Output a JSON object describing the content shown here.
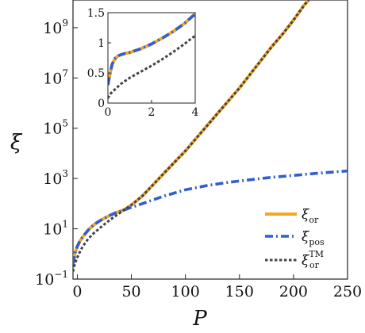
{
  "chart_data": {
    "type": "line",
    "xlabel": "P",
    "ylabel": "ξ",
    "xlim": [
      -4,
      250
    ],
    "y_log10_lim": [
      -1,
      10.1
    ],
    "y_scale": "log",
    "x_ticks": [
      {
        "value": 0,
        "label": "0"
      },
      {
        "value": 50,
        "label": "50"
      },
      {
        "value": 100,
        "label": "100"
      },
      {
        "value": 150,
        "label": "150"
      },
      {
        "value": 200,
        "label": "200"
      },
      {
        "value": 250,
        "label": "250"
      }
    ],
    "y_ticks": [
      {
        "log10": -1,
        "base": "10",
        "exp": "−1"
      },
      {
        "log10": 1,
        "base": "10",
        "exp": "1"
      },
      {
        "log10": 3,
        "base": "10",
        "exp": "3"
      },
      {
        "log10": 5,
        "base": "10",
        "exp": "5"
      },
      {
        "log10": 7,
        "base": "10",
        "exp": "7"
      },
      {
        "log10": 9,
        "base": "10",
        "exp": "9"
      }
    ],
    "legend_position": "bottom-right",
    "series": [
      {
        "key": "or",
        "legend_main": "ξ",
        "legend_sub": "or",
        "legend_sup": "",
        "color": "#f5a623",
        "style": "solid",
        "points_log10": [
          [
            -4,
            -0.4
          ],
          [
            -2,
            0.05
          ],
          [
            0,
            0.3
          ],
          [
            2,
            0.48
          ],
          [
            5,
            0.68
          ],
          [
            10,
            0.95
          ],
          [
            15,
            1.15
          ],
          [
            20,
            1.3
          ],
          [
            25,
            1.42
          ],
          [
            30,
            1.53
          ],
          [
            35,
            1.63
          ],
          [
            40,
            1.7
          ],
          [
            45,
            1.8
          ],
          [
            50,
            1.95
          ],
          [
            60,
            2.3
          ],
          [
            70,
            2.75
          ],
          [
            80,
            3.2
          ],
          [
            90,
            3.65
          ],
          [
            100,
            4.1
          ],
          [
            110,
            4.6
          ],
          [
            120,
            5.1
          ],
          [
            130,
            5.6
          ],
          [
            140,
            6.1
          ],
          [
            150,
            6.6
          ],
          [
            160,
            7.15
          ],
          [
            170,
            7.7
          ],
          [
            180,
            8.25
          ],
          [
            190,
            8.75
          ],
          [
            200,
            9.3
          ],
          [
            210,
            9.9
          ],
          [
            214,
            10.1
          ]
        ]
      },
      {
        "key": "pos",
        "legend_main": "ξ",
        "legend_sub": "pos",
        "legend_sup": "",
        "color": "#2f5fd0",
        "style": "dashdot",
        "points_log10": [
          [
            -4,
            -0.4
          ],
          [
            -2,
            0.05
          ],
          [
            0,
            0.3
          ],
          [
            2,
            0.48
          ],
          [
            5,
            0.68
          ],
          [
            10,
            0.95
          ],
          [
            15,
            1.15
          ],
          [
            20,
            1.3
          ],
          [
            25,
            1.42
          ],
          [
            30,
            1.53
          ],
          [
            35,
            1.63
          ],
          [
            40,
            1.7
          ],
          [
            50,
            1.85
          ],
          [
            60,
            2.0
          ],
          [
            70,
            2.15
          ],
          [
            80,
            2.3
          ],
          [
            100,
            2.55
          ],
          [
            120,
            2.72
          ],
          [
            140,
            2.85
          ],
          [
            160,
            2.95
          ],
          [
            180,
            3.05
          ],
          [
            200,
            3.12
          ],
          [
            220,
            3.2
          ],
          [
            240,
            3.27
          ],
          [
            250,
            3.3
          ]
        ]
      },
      {
        "key": "tm",
        "legend_main": "ξ",
        "legend_sub": "or",
        "legend_sup": "TM",
        "color": "#444444",
        "style": "dotted",
        "points_log10": [
          [
            -4,
            -0.7
          ],
          [
            -2,
            -0.35
          ],
          [
            0,
            -0.15
          ],
          [
            2,
            0.05
          ],
          [
            5,
            0.3
          ],
          [
            10,
            0.6
          ],
          [
            15,
            0.82
          ],
          [
            20,
            1.0
          ],
          [
            25,
            1.18
          ],
          [
            30,
            1.35
          ],
          [
            35,
            1.5
          ],
          [
            40,
            1.65
          ],
          [
            45,
            1.8
          ],
          [
            50,
            1.95
          ],
          [
            60,
            2.3
          ],
          [
            70,
            2.75
          ],
          [
            80,
            3.2
          ],
          [
            90,
            3.65
          ],
          [
            100,
            4.1
          ],
          [
            110,
            4.6
          ],
          [
            120,
            5.1
          ],
          [
            130,
            5.6
          ],
          [
            140,
            6.1
          ],
          [
            150,
            6.6
          ],
          [
            160,
            7.15
          ],
          [
            170,
            7.7
          ],
          [
            180,
            8.25
          ],
          [
            190,
            8.75
          ],
          [
            200,
            9.3
          ],
          [
            210,
            9.9
          ],
          [
            214,
            10.1
          ]
        ]
      }
    ],
    "inset": {
      "xlim": [
        0,
        4
      ],
      "ylim": [
        0,
        1.5
      ],
      "x_ticks": [
        {
          "value": 0,
          "label": "0"
        },
        {
          "value": 2,
          "label": "2"
        },
        {
          "value": 4,
          "label": "4"
        }
      ],
      "y_ticks": [
        {
          "value": 0,
          "label": "0"
        },
        {
          "value": 0.5,
          "label": "0.5"
        },
        {
          "value": 1,
          "label": "1"
        },
        {
          "value": 1.5,
          "label": "1.5"
        }
      ],
      "series": [
        {
          "key": "or",
          "color": "#f5a623",
          "style": "solid",
          "points": [
            [
              0,
              0.3
            ],
            [
              0.1,
              0.5
            ],
            [
              0.2,
              0.65
            ],
            [
              0.35,
              0.75
            ],
            [
              0.5,
              0.79
            ],
            [
              0.75,
              0.82
            ],
            [
              1,
              0.84
            ],
            [
              1.5,
              0.9
            ],
            [
              2,
              0.98
            ],
            [
              2.5,
              1.08
            ],
            [
              3,
              1.19
            ],
            [
              3.5,
              1.32
            ],
            [
              4,
              1.48
            ]
          ]
        },
        {
          "key": "pos",
          "color": "#2f5fd0",
          "style": "dashdot",
          "points": [
            [
              0,
              0.3
            ],
            [
              0.1,
              0.5
            ],
            [
              0.2,
              0.65
            ],
            [
              0.35,
              0.75
            ],
            [
              0.5,
              0.79
            ],
            [
              0.75,
              0.82
            ],
            [
              1,
              0.84
            ],
            [
              1.5,
              0.9
            ],
            [
              2,
              0.98
            ],
            [
              2.5,
              1.08
            ],
            [
              3,
              1.19
            ],
            [
              3.5,
              1.32
            ],
            [
              4,
              1.48
            ]
          ]
        },
        {
          "key": "tm",
          "color": "#444444",
          "style": "dotted",
          "points": [
            [
              0,
              0.08
            ],
            [
              0.1,
              0.15
            ],
            [
              0.3,
              0.22
            ],
            [
              0.6,
              0.32
            ],
            [
              1,
              0.42
            ],
            [
              1.5,
              0.52
            ],
            [
              2,
              0.62
            ],
            [
              2.5,
              0.73
            ],
            [
              3,
              0.85
            ],
            [
              3.5,
              0.98
            ],
            [
              4,
              1.12
            ]
          ]
        }
      ]
    }
  }
}
